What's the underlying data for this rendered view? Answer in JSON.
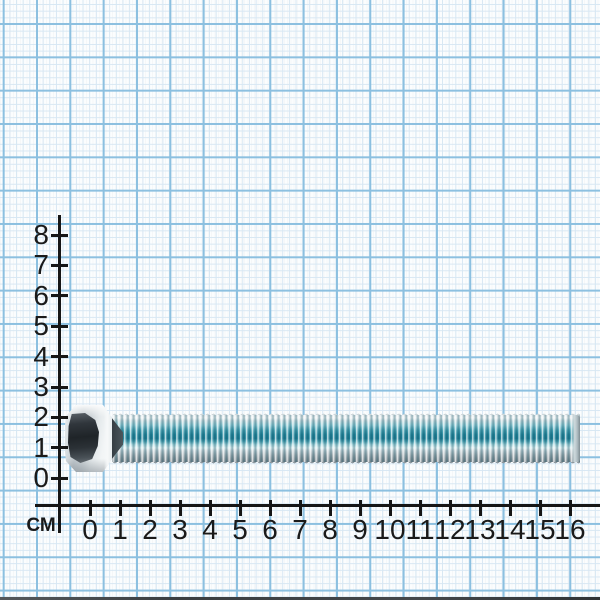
{
  "scene": {
    "description": "Galvanized zinc-plated hex head bolt lying horizontally on light blue millimeter graph paper with black centimeter rulers",
    "unit_label": "СМ"
  },
  "rulers": {
    "vertical": {
      "values": [
        "8",
        "7",
        "6",
        "5",
        "4",
        "3",
        "2",
        "1",
        "0"
      ]
    },
    "horizontal": {
      "values": [
        "0",
        "1",
        "2",
        "3",
        "4",
        "5",
        "6",
        "7",
        "8",
        "9",
        "10",
        "11",
        "12",
        "13",
        "14",
        "15",
        "16"
      ]
    }
  },
  "measurements": {
    "thread_span_cm": [
      0.7,
      16.3
    ],
    "bolt_overall_span_cm": [
      -0.8,
      16.3
    ],
    "shaft_diameter_cm": 1.5,
    "head_height_cm": 2.2
  },
  "colors": {
    "paper": "#fbfdfe",
    "grid_fine": "#d7e7f3",
    "grid_major": "#8cc0e0",
    "axis": "#161616",
    "label": "#1a1a1a",
    "zinc_light": "#f2f5f6",
    "zinc_mid": "#c0c8cd",
    "zinc_dark_facet": "#1f2428",
    "thread_teal_dark": "#1b7e95",
    "thread_teal_light": "#a5d8df"
  }
}
